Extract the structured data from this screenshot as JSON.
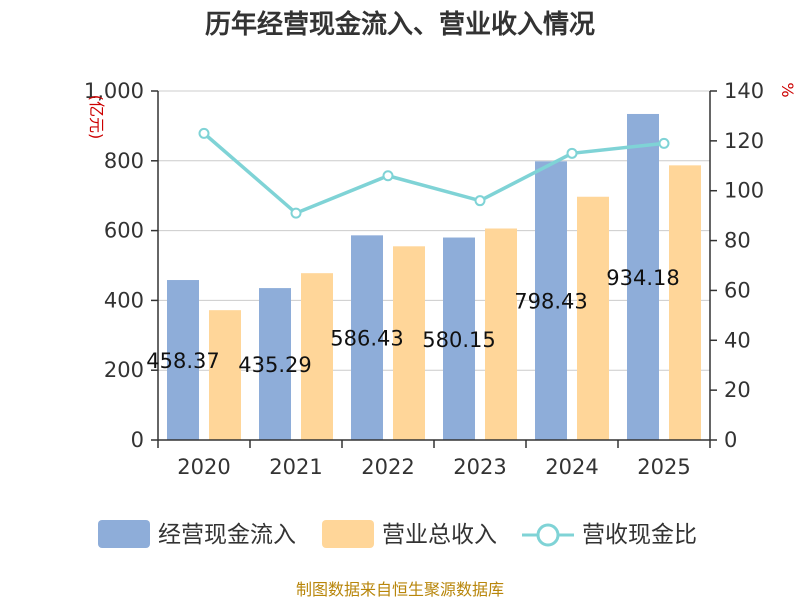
{
  "chart_data": {
    "type": "bar",
    "title": "历年经营现金流入、营业收入情况",
    "categories": [
      "2020",
      "2021",
      "2022",
      "2023",
      "2024",
      "2025"
    ],
    "series": [
      {
        "name": "经营现金流入",
        "type": "bar",
        "axis": "left",
        "values": [
          458.37,
          435.29,
          586.43,
          580.15,
          798.43,
          934.18
        ],
        "labels": [
          "458.37",
          "435.29",
          "586.43",
          "580.15",
          "798.43",
          "934.18"
        ],
        "color": "#8eadd9"
      },
      {
        "name": "营业总收入",
        "type": "bar",
        "axis": "left",
        "values": [
          372,
          478,
          555,
          606,
          697,
          787
        ],
        "color": "#ffd699"
      },
      {
        "name": "营收现金比",
        "type": "line",
        "axis": "right",
        "values": [
          123,
          91,
          106,
          96,
          115,
          119
        ],
        "color": "#7fd3d6"
      }
    ],
    "y_left": {
      "min": 0,
      "max": 1000,
      "step": 200,
      "ticks": [
        "0",
        "200",
        "400",
        "600",
        "800",
        "1,000"
      ],
      "unit": "(亿元)"
    },
    "y_right": {
      "min": 0,
      "max": 140,
      "step": 20,
      "ticks": [
        "0",
        "20",
        "40",
        "60",
        "80",
        "100",
        "120",
        "140"
      ],
      "unit": "%"
    },
    "legend": {
      "position": "bottom",
      "items": [
        "经营现金流入",
        "营业总收入",
        "营收现金比"
      ]
    },
    "grid": true,
    "source": "制图数据来自恒生聚源数据库"
  }
}
